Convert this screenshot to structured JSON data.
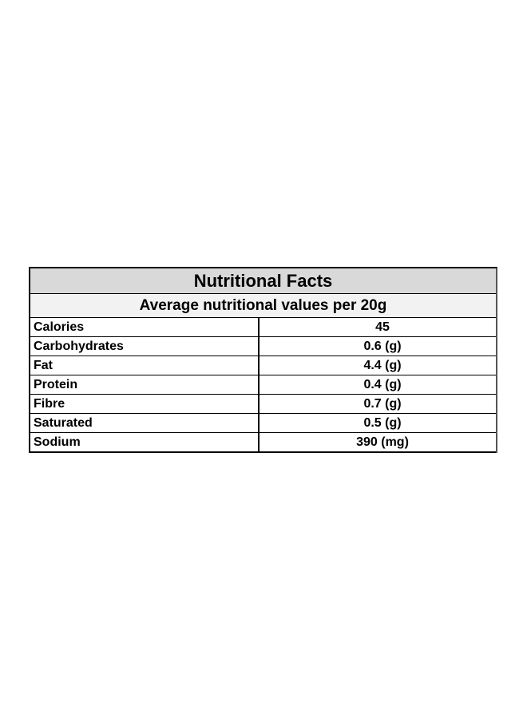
{
  "table": {
    "title": "Nutritional Facts",
    "subtitle": "Average nutritional values per 20g",
    "rows": [
      {
        "nutrient": "Calories",
        "amount": "45"
      },
      {
        "nutrient": "Carbohydrates",
        "amount": "0.6 (g)"
      },
      {
        "nutrient": "Fat",
        "amount": "4.4 (g)"
      },
      {
        "nutrient": "Protein",
        "amount": "0.4 (g)"
      },
      {
        "nutrient": "Fibre",
        "amount": "0.7 (g)"
      },
      {
        "nutrient": "Saturated",
        "amount": "0.5 (g)"
      },
      {
        "nutrient": "Sodium",
        "amount": "390 (mg)"
      }
    ]
  },
  "colors": {
    "title_background": "#d9d9d9",
    "subtitle_background": "#f2f2f2",
    "border": "#000000",
    "text": "#000000"
  }
}
